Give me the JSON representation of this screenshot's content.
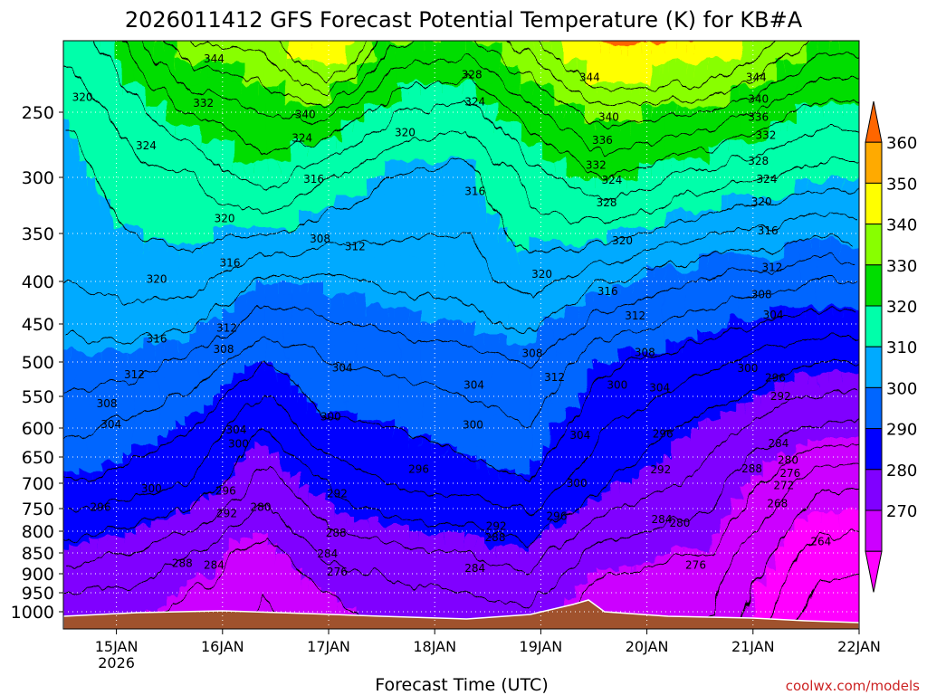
{
  "chart_data": {
    "type": "heatmap",
    "title": "2026011412 GFS Forecast Potential Temperature (K) for KB#A",
    "xlabel": "Forecast Time (UTC)",
    "ylabel": "",
    "credit": "coolwx.com/models",
    "x_ticks": [
      {
        "label": "15JAN",
        "sub": "2026",
        "day": 15
      },
      {
        "label": "16JAN",
        "sub": "",
        "day": 16
      },
      {
        "label": "17JAN",
        "sub": "",
        "day": 17
      },
      {
        "label": "18JAN",
        "sub": "",
        "day": 18
      },
      {
        "label": "19JAN",
        "sub": "",
        "day": 19
      },
      {
        "label": "20JAN",
        "sub": "",
        "day": 20
      },
      {
        "label": "21JAN",
        "sub": "",
        "day": 21
      },
      {
        "label": "22JAN",
        "sub": "",
        "day": 22
      }
    ],
    "xlim": [
      14.5,
      22.0
    ],
    "y_ticks": [
      250,
      300,
      350,
      400,
      450,
      500,
      550,
      600,
      650,
      700,
      750,
      800,
      850,
      900,
      950,
      1000
    ],
    "ylim_hPa": [
      200,
      1000
    ],
    "colorbar": {
      "labels": [
        270,
        280,
        290,
        300,
        310,
        320,
        330,
        340,
        350,
        360
      ],
      "colors": [
        "#ff00ff",
        "#cc00ff",
        "#8000ff",
        "#0000ff",
        "#0066ff",
        "#00aaff",
        "#00ffaa",
        "#00dd00",
        "#88ff00",
        "#ffff00",
        "#ffaa00",
        "#ff6600"
      ]
    },
    "levels": [
      {
        "level": 250,
        "theta": [
          321,
          326,
          332,
          336,
          338,
          328,
          326,
          334,
          343,
          339,
          330
        ]
      },
      {
        "level": 300,
        "theta": [
          318,
          322,
          324,
          330,
          324,
          320,
          318,
          326,
          332,
          326,
          322
        ]
      },
      {
        "level": 400,
        "theta": [
          316,
          318,
          318,
          311,
          311,
          313,
          314,
          318,
          312,
          307,
          304
        ]
      },
      {
        "level": 500,
        "theta": [
          310,
          310,
          307,
          300,
          304,
          305,
          306,
          308,
          301,
          297,
          292
        ]
      },
      {
        "level": 600,
        "theta": [
          305,
          303,
          300,
          292,
          299,
          300,
          302,
          304,
          296,
          290,
          283
        ]
      },
      {
        "level": 700,
        "theta": [
          300,
          298,
          296,
          286,
          293,
          296,
          298,
          300,
          292,
          286,
          273
        ]
      },
      {
        "level": 850,
        "theta": [
          290,
          288,
          284,
          278,
          285,
          287,
          288,
          290,
          282,
          280,
          266
        ]
      },
      {
        "level": 950,
        "theta": [
          284,
          283,
          280,
          276,
          280,
          283,
          284,
          285,
          278,
          277,
          263
        ]
      }
    ],
    "level_x_days": [
      14.6,
      15.1,
      15.7,
      16.4,
      17.0,
      17.6,
      18.3,
      18.9,
      19.6,
      20.6,
      21.6
    ],
    "contour_labels": [
      {
        "text": "344",
        "day": 15.92,
        "p": 213
      },
      {
        "text": "320",
        "day": 14.68,
        "p": 240
      },
      {
        "text": "332",
        "day": 15.82,
        "p": 244
      },
      {
        "text": "340",
        "day": 16.78,
        "p": 252
      },
      {
        "text": "328",
        "day": 18.35,
        "p": 224
      },
      {
        "text": "324",
        "day": 18.38,
        "p": 243
      },
      {
        "text": "324",
        "day": 15.28,
        "p": 276
      },
      {
        "text": "324",
        "day": 16.75,
        "p": 270
      },
      {
        "text": "320",
        "day": 17.72,
        "p": 266
      },
      {
        "text": "316",
        "day": 16.86,
        "p": 302
      },
      {
        "text": "316",
        "day": 18.38,
        "p": 313
      },
      {
        "text": "320",
        "day": 16.02,
        "p": 337
      },
      {
        "text": "316",
        "day": 16.07,
        "p": 381
      },
      {
        "text": "308",
        "day": 16.92,
        "p": 356
      },
      {
        "text": "312",
        "day": 17.25,
        "p": 364
      },
      {
        "text": "320",
        "day": 15.38,
        "p": 398
      },
      {
        "text": "320",
        "day": 19.01,
        "p": 393
      },
      {
        "text": "312",
        "day": 16.04,
        "p": 456
      },
      {
        "text": "316",
        "day": 15.38,
        "p": 470
      },
      {
        "text": "308",
        "day": 16.01,
        "p": 484
      },
      {
        "text": "312",
        "day": 15.17,
        "p": 519
      },
      {
        "text": "304",
        "day": 17.13,
        "p": 509
      },
      {
        "text": "308",
        "day": 18.92,
        "p": 489
      },
      {
        "text": "312",
        "day": 19.13,
        "p": 523
      },
      {
        "text": "304",
        "day": 18.37,
        "p": 534
      },
      {
        "text": "308",
        "day": 14.91,
        "p": 562
      },
      {
        "text": "300",
        "day": 17.02,
        "p": 583
      },
      {
        "text": "300",
        "day": 18.36,
        "p": 596
      },
      {
        "text": "304",
        "day": 14.95,
        "p": 595
      },
      {
        "text": "304",
        "day": 16.13,
        "p": 604
      },
      {
        "text": "304",
        "day": 19.37,
        "p": 613
      },
      {
        "text": "300",
        "day": 16.15,
        "p": 628
      },
      {
        "text": "296",
        "day": 17.85,
        "p": 674
      },
      {
        "text": "300",
        "day": 15.33,
        "p": 712
      },
      {
        "text": "296",
        "day": 16.03,
        "p": 716
      },
      {
        "text": "292",
        "day": 17.08,
        "p": 721
      },
      {
        "text": "300",
        "day": 19.34,
        "p": 701
      },
      {
        "text": "296",
        "day": 14.85,
        "p": 748
      },
      {
        "text": "292",
        "day": 16.04,
        "p": 762
      },
      {
        "text": "280",
        "day": 16.36,
        "p": 748
      },
      {
        "text": "296",
        "day": 19.15,
        "p": 768
      },
      {
        "text": "292",
        "day": 18.58,
        "p": 790
      },
      {
        "text": "288",
        "day": 17.07,
        "p": 805
      },
      {
        "text": "288",
        "day": 18.57,
        "p": 816
      },
      {
        "text": "284",
        "day": 16.99,
        "p": 853
      },
      {
        "text": "276",
        "day": 17.08,
        "p": 897
      },
      {
        "text": "288",
        "day": 15.62,
        "p": 876
      },
      {
        "text": "284",
        "day": 15.92,
        "p": 880
      },
      {
        "text": "284",
        "day": 18.38,
        "p": 888
      },
      {
        "text": "300",
        "day": 19.72,
        "p": 534
      },
      {
        "text": "316",
        "day": 19.63,
        "p": 412
      },
      {
        "text": "312",
        "day": 19.89,
        "p": 441
      },
      {
        "text": "308",
        "day": 19.98,
        "p": 488
      },
      {
        "text": "304",
        "day": 20.12,
        "p": 538
      },
      {
        "text": "296",
        "day": 20.15,
        "p": 611
      },
      {
        "text": "292",
        "day": 20.13,
        "p": 675
      },
      {
        "text": "284",
        "day": 20.14,
        "p": 775
      },
      {
        "text": "280",
        "day": 20.31,
        "p": 783
      },
      {
        "text": "276",
        "day": 20.46,
        "p": 880
      },
      {
        "text": "344",
        "day": 19.46,
        "p": 226
      },
      {
        "text": "340",
        "day": 19.64,
        "p": 254
      },
      {
        "text": "336",
        "day": 19.58,
        "p": 272
      },
      {
        "text": "332",
        "day": 19.52,
        "p": 291
      },
      {
        "text": "324",
        "day": 19.67,
        "p": 303
      },
      {
        "text": "328",
        "day": 19.62,
        "p": 323
      },
      {
        "text": "320",
        "day": 19.77,
        "p": 358
      },
      {
        "text": "344",
        "day": 21.03,
        "p": 226
      },
      {
        "text": "340",
        "day": 21.05,
        "p": 241
      },
      {
        "text": "336",
        "day": 21.05,
        "p": 254
      },
      {
        "text": "332",
        "day": 21.12,
        "p": 268
      },
      {
        "text": "328",
        "day": 21.05,
        "p": 288
      },
      {
        "text": "324",
        "day": 21.13,
        "p": 302
      },
      {
        "text": "320",
        "day": 21.08,
        "p": 322
      },
      {
        "text": "316",
        "day": 21.14,
        "p": 348
      },
      {
        "text": "312",
        "day": 21.18,
        "p": 386
      },
      {
        "text": "308",
        "day": 21.08,
        "p": 416
      },
      {
        "text": "304",
        "day": 21.19,
        "p": 440
      },
      {
        "text": "300",
        "day": 20.95,
        "p": 510
      },
      {
        "text": "296",
        "day": 21.21,
        "p": 524
      },
      {
        "text": "292",
        "day": 21.26,
        "p": 551
      },
      {
        "text": "284",
        "day": 21.24,
        "p": 627
      },
      {
        "text": "280",
        "day": 21.33,
        "p": 657
      },
      {
        "text": "288",
        "day": 20.99,
        "p": 673
      },
      {
        "text": "276",
        "day": 21.35,
        "p": 682
      },
      {
        "text": "272",
        "day": 21.29,
        "p": 705
      },
      {
        "text": "268",
        "day": 21.23,
        "p": 741
      },
      {
        "text": "264",
        "day": 21.64,
        "p": 825
      }
    ]
  }
}
